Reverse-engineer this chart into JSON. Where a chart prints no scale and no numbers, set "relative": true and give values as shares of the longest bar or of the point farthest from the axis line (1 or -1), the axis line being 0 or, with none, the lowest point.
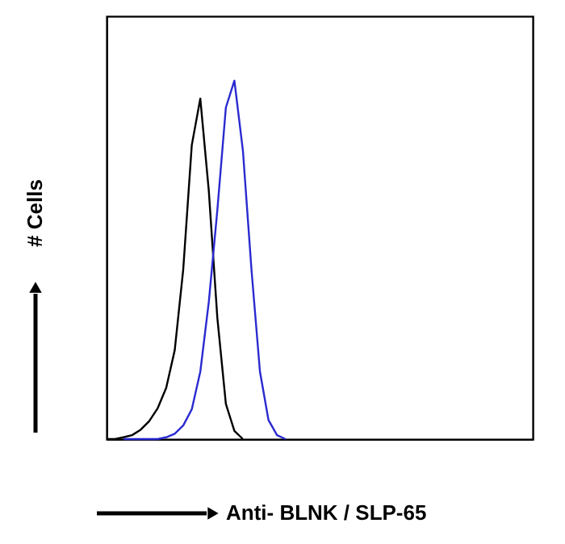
{
  "chart_data": {
    "type": "line",
    "relative": true,
    "xlabel": "Anti- BLNK / SLP-65",
    "ylabel": "# Cells",
    "categories": [
      null,
      null,
      null,
      null,
      null,
      null,
      null,
      null,
      null,
      null,
      null,
      null,
      null,
      null,
      null,
      null,
      null,
      null,
      null,
      null,
      null,
      null,
      null,
      null,
      null,
      null,
      null,
      null,
      null,
      null,
      null,
      null,
      null,
      null,
      null,
      null,
      null,
      null,
      null,
      null,
      null,
      null,
      null,
      null,
      null,
      null,
      null,
      null,
      null,
      null,
      null
    ],
    "series": [
      {
        "color": "#000000",
        "values": [
          0,
          0,
          0.005,
          0.011,
          0.026,
          0.05,
          0.086,
          0.143,
          0.248,
          0.474,
          0.82,
          0.95,
          0.692,
          0.338,
          0.098,
          0.023,
          0,
          null,
          null,
          null,
          null,
          null,
          null,
          null,
          null,
          null,
          null,
          null,
          null,
          null,
          null,
          null,
          null,
          null,
          null,
          null,
          null,
          null,
          null,
          null,
          null,
          null,
          null,
          null,
          null,
          null,
          null,
          null,
          null,
          null,
          null
        ]
      },
      {
        "color": "#2a2ad0",
        "values": [
          null,
          null,
          0,
          0,
          0,
          0,
          0,
          0.005,
          0.015,
          0.038,
          0.083,
          0.188,
          0.383,
          0.639,
          0.925,
          1,
          0.805,
          0.474,
          0.188,
          0.053,
          0.011,
          0,
          null,
          null,
          null,
          null,
          null,
          null,
          null,
          null,
          null,
          null,
          null,
          null,
          null,
          null,
          null,
          null,
          null,
          null,
          null,
          null,
          null,
          null,
          null,
          null,
          null,
          null,
          null,
          null,
          null
        ]
      }
    ],
    "grid": false,
    "tick_labels": false,
    "line_style": "solid",
    "marker": "none"
  }
}
